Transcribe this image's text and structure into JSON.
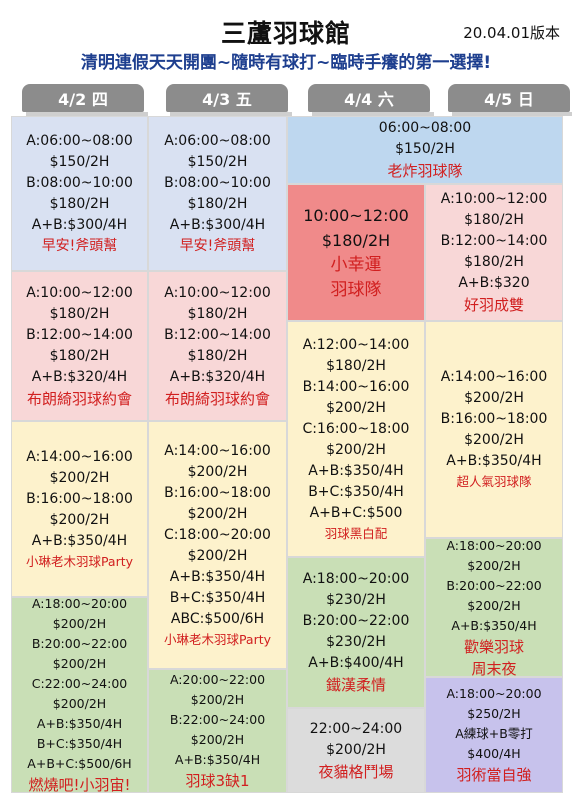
{
  "header": {
    "title": "三蘆羽球館",
    "version": "20.04.01版本",
    "subtitle": "清明連假天天開團~隨時有球打~臨時手癢的第一選擇!"
  },
  "days": [
    "4/2 四",
    "4/3 五",
    "4/4 六",
    "4/5 日"
  ],
  "col1": [
    {
      "lines": [
        "A:06:00~08:00",
        "$150/2H",
        "B:08:00~10:00",
        "$180/2H",
        "A+B:$300/4H"
      ],
      "team": "早安!斧頭幫"
    },
    {
      "lines": [
        "A:10:00~12:00",
        "$180/2H",
        "B:12:00~14:00",
        "$180/2H",
        "A+B:$320/4H"
      ],
      "team": "布朗綺羽球約會"
    },
    {
      "lines": [
        "A:14:00~16:00",
        "$200/2H",
        "B:16:00~18:00",
        "$200/2H",
        "A+B:$350/4H"
      ],
      "team": "小琳老木羽球Party"
    },
    {
      "lines": [
        "A:18:00~20:00",
        "$200/2H",
        "B:20:00~22:00",
        "$200/2H",
        "C:22:00~24:00",
        "$200/2H",
        "A+B:$350/4H",
        "B+C:$350/4H",
        "A+B+C:$500/6H"
      ],
      "team": "燃燒吧!小羽宙!"
    }
  ],
  "col2": [
    {
      "lines": [
        "A:06:00~08:00",
        "$150/2H",
        "B:08:00~10:00",
        "$180/2H",
        "A+B:$300/4H"
      ],
      "team": "早安!斧頭幫"
    },
    {
      "lines": [
        "A:10:00~12:00",
        "$180/2H",
        "B:12:00~14:00",
        "$180/2H",
        "A+B:$320/4H"
      ],
      "team": "布朗綺羽球約會"
    },
    {
      "lines": [
        "A:14:00~16:00",
        "$200/2H",
        "B:16:00~18:00",
        "$200/2H",
        "C:18:00~20:00",
        "$200/2H",
        "A+B:$350/4H",
        "B+C:$350/4H",
        "ABC:$500/6H"
      ],
      "team": "小琳老木羽球Party"
    },
    {
      "lines": [
        "A:20:00~22:00",
        "$200/2H",
        "B:22:00~24:00",
        "$200/2H",
        "A+B:$350/4H"
      ],
      "team": "羽球3缺1"
    }
  ],
  "col34": {
    "lines": [
      "06:00~08:00",
      "$150/2H"
    ],
    "team": "老炸羽球隊"
  },
  "col3": [
    {
      "lines": [
        "10:00~12:00",
        "$180/2H"
      ],
      "team": [
        "小幸運",
        "羽球隊"
      ]
    },
    {
      "lines": [
        "A:12:00~14:00",
        "$180/2H",
        "B:14:00~16:00",
        "$200/2H",
        "C:16:00~18:00",
        "$200/2H",
        "A+B:$350/4H",
        "B+C:$350/4H",
        "A+B+C:$500"
      ],
      "team": "羽球黑白配"
    },
    {
      "lines": [
        "A:18:00~20:00",
        "$230/2H",
        "B:20:00~22:00",
        "$230/2H",
        "A+B:$400/4H"
      ],
      "team": "鐵漢柔情"
    },
    {
      "lines": [
        "22:00~24:00",
        "$200/2H"
      ],
      "team": "夜貓格鬥場"
    }
  ],
  "col4": [
    {
      "lines": [
        "A:10:00~12:00",
        "$180/2H",
        "B:12:00~14:00",
        "$180/2H",
        "A+B:$320"
      ],
      "team": "好羽成雙"
    },
    {
      "lines": [
        "A:14:00~16:00",
        "$200/2H",
        "B:16:00~18:00",
        "$200/2H",
        "A+B:$350/4H"
      ],
      "team": "超人氣羽球隊"
    },
    {
      "lines": [
        "A:18:00~20:00",
        "$200/2H",
        "B:20:00~22:00",
        "$200/2H",
        "A+B:$350/4H"
      ],
      "team": [
        "歡樂羽球",
        "周末夜"
      ]
    },
    {
      "lines": [
        "A:18:00~20:00",
        "$250/2H",
        "A練球+B零打",
        "$400/4H"
      ],
      "team": "羽術當自強"
    }
  ],
  "colors": {
    "accent_blue": "#1e3f8f",
    "team_red": "#d11f1f",
    "tab_gray": "#8c8c8c"
  }
}
